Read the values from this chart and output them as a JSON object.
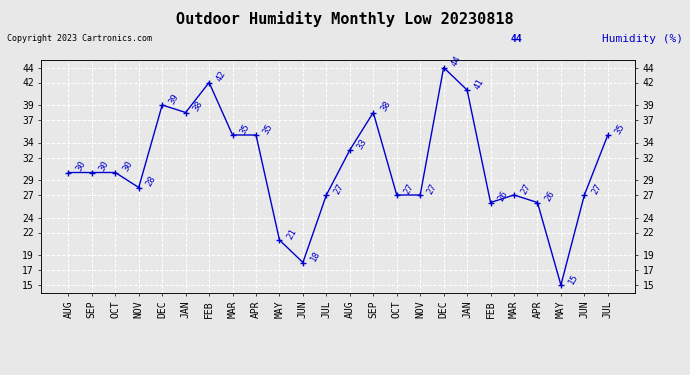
{
  "title": "Outdoor Humidity Monthly Low 20230818",
  "copyright": "Copyright 2023 Cartronics.com",
  "humidity_label": "Humidity (%)",
  "x_labels": [
    "AUG",
    "SEP",
    "OCT",
    "NOV",
    "DEC",
    "JAN",
    "FEB",
    "MAR",
    "APR",
    "MAY",
    "JUN",
    "JUL",
    "AUG",
    "SEP",
    "OCT",
    "NOV",
    "DEC",
    "JAN",
    "FEB",
    "MAR",
    "APR",
    "MAY",
    "JUN",
    "JUL"
  ],
  "y_values": [
    30,
    30,
    30,
    28,
    39,
    38,
    42,
    35,
    35,
    21,
    18,
    27,
    33,
    38,
    27,
    27,
    44,
    41,
    26,
    27,
    26,
    15,
    27,
    35
  ],
  "ylim_min": 14,
  "ylim_max": 45,
  "yticks": [
    15,
    17,
    19,
    22,
    24,
    27,
    29,
    32,
    34,
    37,
    39,
    42,
    44
  ],
  "line_color": "#0000cc",
  "marker": "+",
  "bg_color": "#e8e8e8",
  "grid_color": "#ffffff",
  "title_color": "#000000",
  "label_color": "#0000cc",
  "copyright_color": "#000000",
  "title_fontsize": 11,
  "tick_fontsize": 7,
  "annot_fontsize": 6.5,
  "label_fontsize": 8
}
